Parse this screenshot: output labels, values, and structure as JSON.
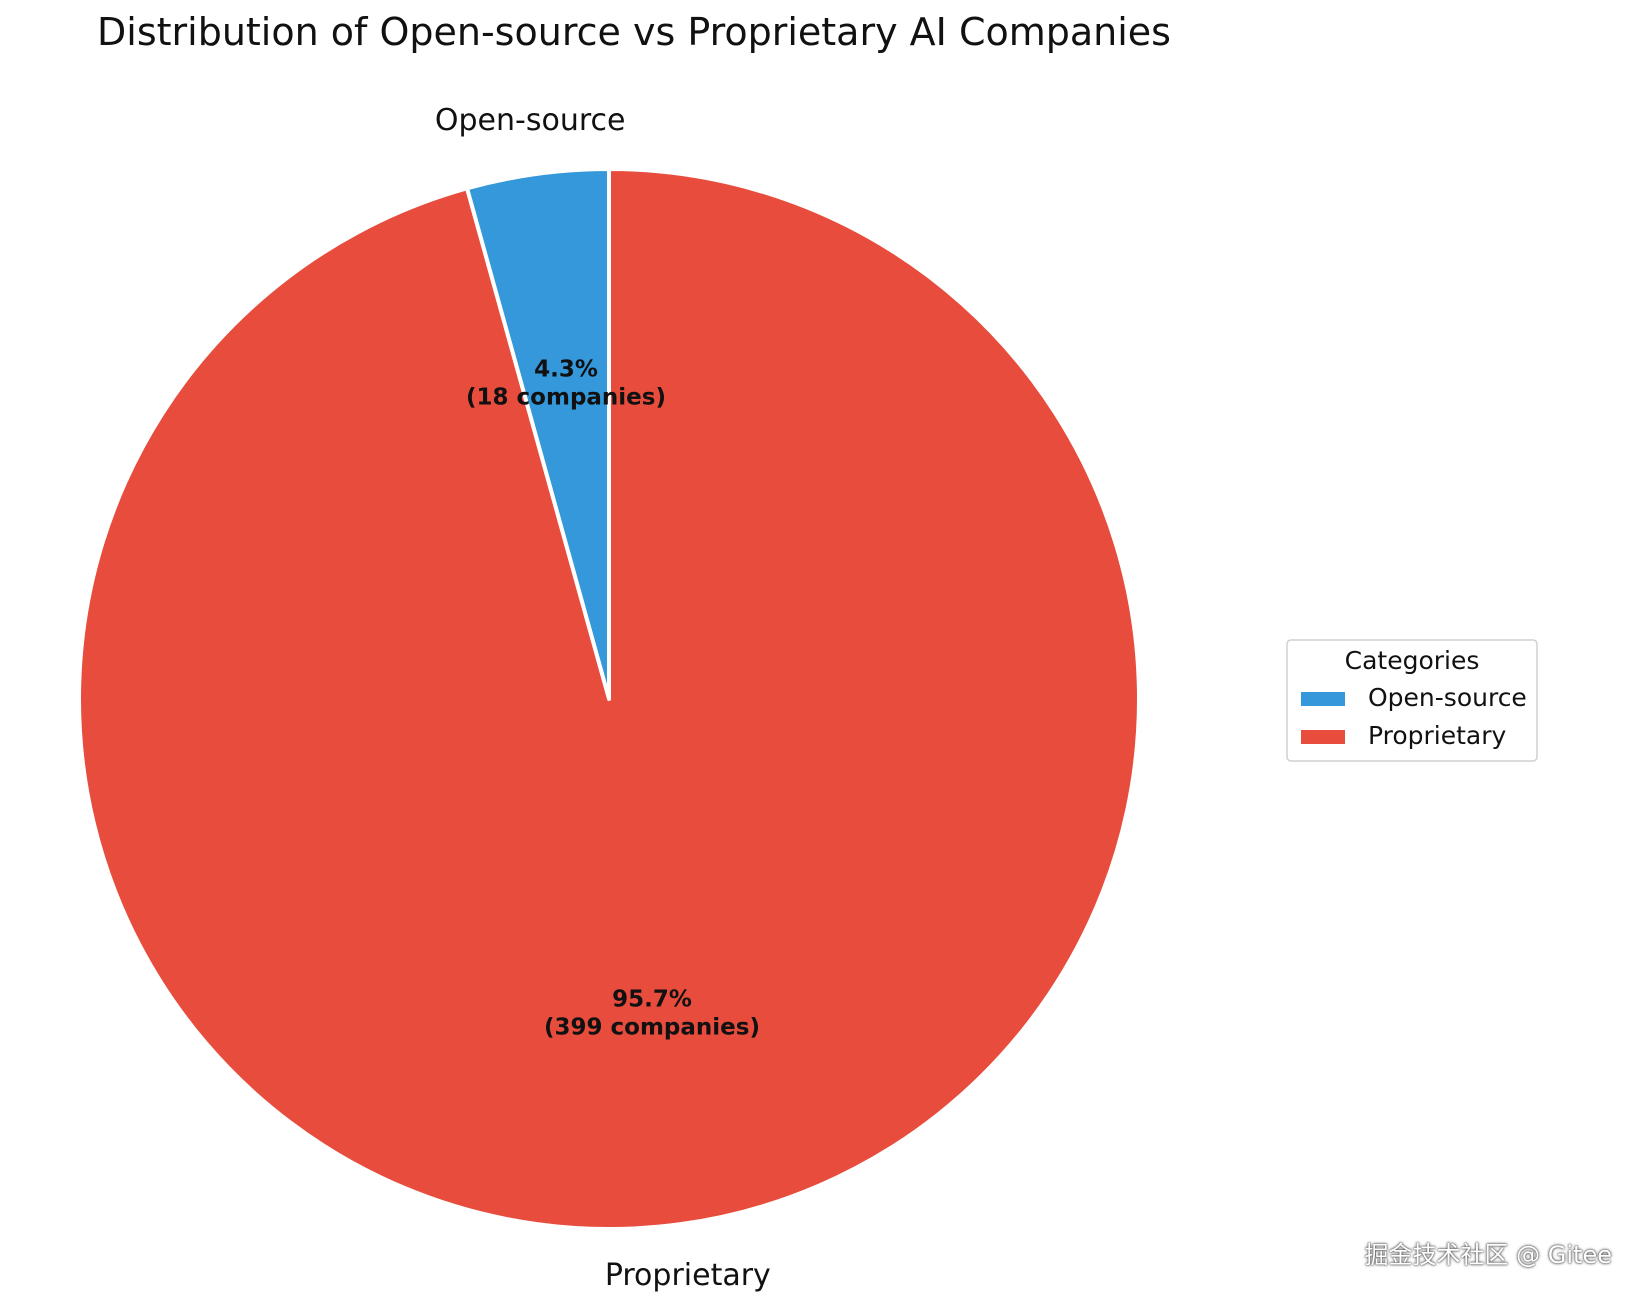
{
  "chart_data": {
    "type": "pie",
    "title": "Distribution of Open-source vs Proprietary AI Companies",
    "slices": [
      {
        "label": "Open-source",
        "value": 18,
        "percent_label": "4.3%",
        "count_label": "(18 companies)",
        "color": "#3498db"
      },
      {
        "label": "Proprietary",
        "value": 399,
        "percent_label": "95.7%",
        "count_label": "(399 companies)",
        "color": "#e74c3c"
      }
    ],
    "start_angle_deg": 90,
    "direction": "counterclockwise",
    "legend": {
      "title": "Categories",
      "placement": "center-right",
      "entries": [
        "Open-source",
        "Proprietary"
      ]
    }
  },
  "watermark": "掘金技术社区 @ Gitee"
}
